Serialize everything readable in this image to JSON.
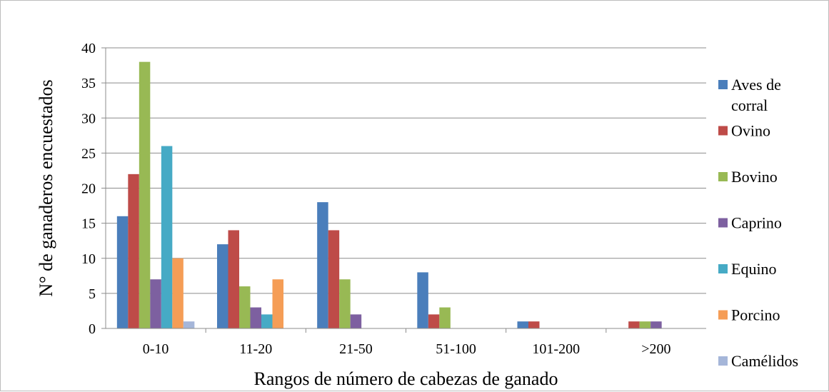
{
  "chart_data": {
    "type": "bar",
    "title": "",
    "xlabel": "Rangos de número de cabezas de ganado",
    "ylabel": "N° de ganaderos encuestados",
    "categories": [
      "0-10",
      "11-20",
      "21-50",
      "51-100",
      "101-200",
      ">200"
    ],
    "ylim": [
      0,
      40
    ],
    "yticks": [
      0,
      5,
      10,
      15,
      20,
      25,
      30,
      35,
      40
    ],
    "grid": true,
    "legend_position": "right",
    "series": [
      {
        "name": "Aves de corral",
        "color": "#4A7EBB",
        "values": [
          16,
          12,
          18,
          8,
          1,
          0
        ]
      },
      {
        "name": "Ovino",
        "color": "#BE4B48",
        "values": [
          22,
          14,
          14,
          2,
          1,
          1
        ]
      },
      {
        "name": "Bovino",
        "color": "#98B954",
        "values": [
          38,
          6,
          7,
          3,
          0,
          1
        ]
      },
      {
        "name": "Caprino",
        "color": "#7D60A0",
        "values": [
          7,
          3,
          2,
          0,
          0,
          1
        ]
      },
      {
        "name": "Equino",
        "color": "#46AAC5",
        "values": [
          26,
          2,
          0,
          0,
          0,
          0
        ]
      },
      {
        "name": "Porcino",
        "color": "#F59D56",
        "values": [
          10,
          7,
          0,
          0,
          0,
          0
        ]
      },
      {
        "name": "Camélidos",
        "color": "#A5B6D9",
        "values": [
          1,
          0,
          0,
          0,
          0,
          0
        ]
      }
    ]
  }
}
